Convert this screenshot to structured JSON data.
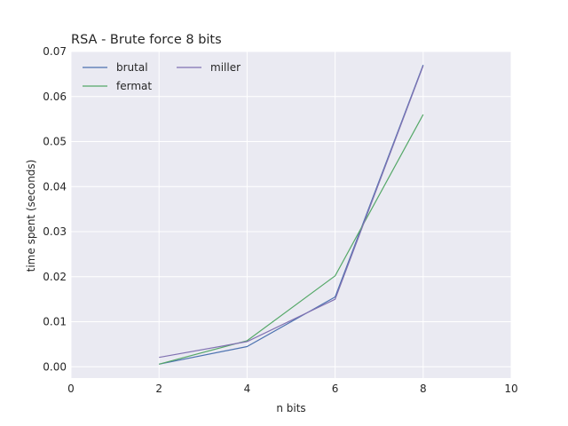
{
  "chart_data": {
    "type": "line",
    "title": "RSA - Brute force 8 bits",
    "xlabel": "n bits",
    "ylabel": "time spent (seconds)",
    "xlim": [
      0,
      10
    ],
    "ylim": [
      -0.0025,
      0.07
    ],
    "xticks": [
      0,
      2,
      4,
      6,
      8,
      10
    ],
    "xtick_labels": [
      "0",
      "2",
      "4",
      "6",
      "8",
      "10"
    ],
    "yticks": [
      0.0,
      0.01,
      0.02,
      0.03,
      0.04,
      0.05,
      0.06,
      0.07
    ],
    "ytick_labels": [
      "0.00",
      "0.01",
      "0.02",
      "0.03",
      "0.04",
      "0.05",
      "0.06",
      "0.07"
    ],
    "grid": true,
    "legend_position": "top-left",
    "x": [
      2,
      4,
      6,
      8
    ],
    "series": [
      {
        "name": "brutal",
        "color": "#4c72b0",
        "values": [
          0.0006,
          0.0045,
          0.0155,
          0.067
        ]
      },
      {
        "name": "fermat",
        "color": "#55a868",
        "values": [
          0.0006,
          0.0058,
          0.0202,
          0.056
        ]
      },
      {
        "name": "miller",
        "color": "#8172b2",
        "values": [
          0.0021,
          0.0056,
          0.015,
          0.0668
        ]
      }
    ]
  }
}
